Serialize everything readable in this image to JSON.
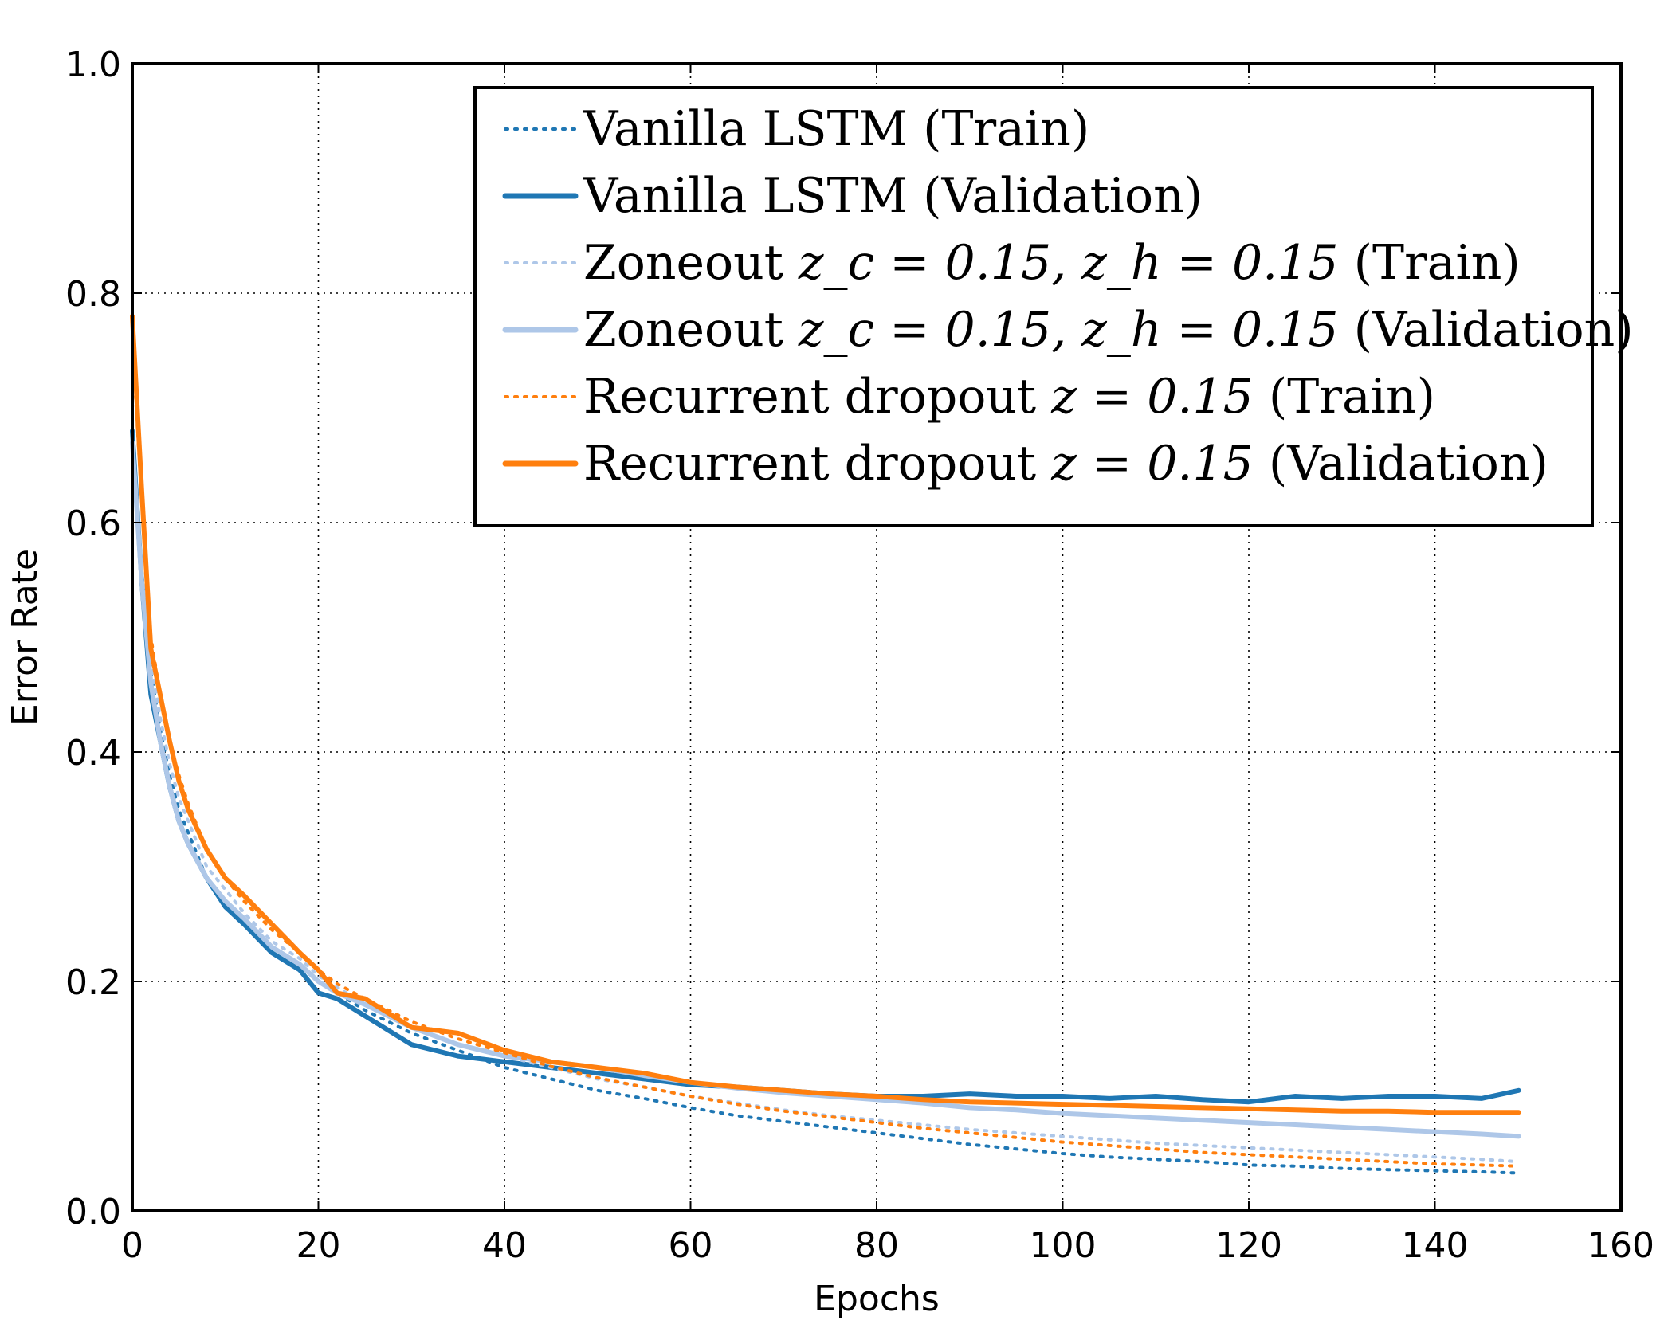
{
  "chart_data": {
    "type": "line",
    "title": "",
    "xlabel": "Epochs",
    "ylabel": "Error Rate",
    "xlim": [
      0,
      160
    ],
    "ylim": [
      0.0,
      1.0
    ],
    "x_ticks": [
      "0",
      "20",
      "40",
      "60",
      "80",
      "100",
      "120",
      "140",
      "160"
    ],
    "y_ticks": [
      "0.0",
      "0.2",
      "0.4",
      "0.6",
      "0.8",
      "1.0"
    ],
    "grid": true,
    "legend_position": "top-right",
    "x_samples": [
      0,
      1,
      2,
      3,
      4,
      5,
      6,
      8,
      10,
      12,
      15,
      18,
      20,
      22,
      25,
      30,
      35,
      40,
      45,
      50,
      55,
      60,
      65,
      70,
      75,
      80,
      85,
      90,
      95,
      100,
      105,
      110,
      115,
      120,
      125,
      130,
      135,
      140,
      145,
      149
    ],
    "series": [
      {
        "name": "Vanilla LSTM (Train)",
        "label_prefix": "Vanilla LSTM (Train)",
        "color": "#1f77b4",
        "style": "dotted",
        "values": [
          0.66,
          0.56,
          0.47,
          0.42,
          0.38,
          0.35,
          0.33,
          0.29,
          0.27,
          0.25,
          0.23,
          0.215,
          0.2,
          0.19,
          0.175,
          0.155,
          0.14,
          0.125,
          0.115,
          0.105,
          0.098,
          0.09,
          0.083,
          0.078,
          0.073,
          0.068,
          0.063,
          0.058,
          0.054,
          0.05,
          0.047,
          0.045,
          0.043,
          0.04,
          0.039,
          0.037,
          0.036,
          0.035,
          0.034,
          0.033
        ]
      },
      {
        "name": "Vanilla LSTM (Validation)",
        "label_prefix": "Vanilla LSTM (Validation)",
        "color": "#1f77b4",
        "style": "solid",
        "values": [
          0.68,
          0.55,
          0.45,
          0.41,
          0.37,
          0.34,
          0.32,
          0.29,
          0.265,
          0.25,
          0.225,
          0.21,
          0.19,
          0.185,
          0.17,
          0.145,
          0.135,
          0.13,
          0.125,
          0.12,
          0.115,
          0.11,
          0.108,
          0.105,
          0.102,
          0.1,
          0.1,
          0.102,
          0.1,
          0.1,
          0.098,
          0.1,
          0.097,
          0.095,
          0.1,
          0.098,
          0.1,
          0.1,
          0.098,
          0.105
        ]
      },
      {
        "name": "Zoneout (Train)",
        "label_prefix": "Zoneout ",
        "label_math": "z_c = 0.15, z_h = 0.15",
        "label_suffix": " (Train)",
        "color": "#aec7e8",
        "style": "dotted",
        "values": [
          0.67,
          0.56,
          0.48,
          0.43,
          0.39,
          0.36,
          0.34,
          0.3,
          0.28,
          0.26,
          0.235,
          0.22,
          0.205,
          0.195,
          0.18,
          0.16,
          0.145,
          0.135,
          0.125,
          0.115,
          0.108,
          0.1,
          0.094,
          0.088,
          0.083,
          0.079,
          0.075,
          0.071,
          0.068,
          0.065,
          0.062,
          0.059,
          0.057,
          0.055,
          0.053,
          0.051,
          0.049,
          0.047,
          0.045,
          0.043
        ]
      },
      {
        "name": "Zoneout (Validation)",
        "label_prefix": "Zoneout ",
        "label_math": "z_c = 0.15, z_h = 0.15",
        "label_suffix": " (Validation)",
        "color": "#aec7e8",
        "style": "solid",
        "values": [
          0.67,
          0.55,
          0.46,
          0.41,
          0.37,
          0.34,
          0.32,
          0.29,
          0.27,
          0.255,
          0.23,
          0.215,
          0.2,
          0.19,
          0.18,
          0.16,
          0.145,
          0.135,
          0.13,
          0.125,
          0.118,
          0.112,
          0.107,
          0.103,
          0.1,
          0.097,
          0.094,
          0.09,
          0.088,
          0.085,
          0.083,
          0.081,
          0.079,
          0.077,
          0.075,
          0.073,
          0.071,
          0.069,
          0.067,
          0.065
        ]
      },
      {
        "name": "Recurrent dropout (Train)",
        "label_prefix": "Recurrent dropout ",
        "label_math": "z = 0.15",
        "label_suffix": " (Train)",
        "color": "#ff7f0e",
        "style": "dotted",
        "values": [
          0.76,
          0.62,
          0.5,
          0.45,
          0.41,
          0.38,
          0.355,
          0.315,
          0.29,
          0.27,
          0.245,
          0.225,
          0.21,
          0.198,
          0.185,
          0.165,
          0.15,
          0.138,
          0.126,
          0.116,
          0.108,
          0.1,
          0.093,
          0.087,
          0.082,
          0.077,
          0.072,
          0.068,
          0.064,
          0.06,
          0.057,
          0.054,
          0.051,
          0.049,
          0.047,
          0.045,
          0.043,
          0.041,
          0.04,
          0.039
        ]
      },
      {
        "name": "Recurrent dropout (Validation)",
        "label_prefix": "Recurrent dropout ",
        "label_math": "z = 0.15",
        "label_suffix": " (Validation)",
        "color": "#ff7f0e",
        "style": "solid",
        "values": [
          0.78,
          0.63,
          0.49,
          0.45,
          0.41,
          0.375,
          0.35,
          0.315,
          0.29,
          0.275,
          0.25,
          0.225,
          0.21,
          0.19,
          0.185,
          0.16,
          0.155,
          0.14,
          0.13,
          0.125,
          0.12,
          0.112,
          0.108,
          0.105,
          0.102,
          0.1,
          0.097,
          0.095,
          0.094,
          0.093,
          0.092,
          0.091,
          0.09,
          0.089,
          0.088,
          0.087,
          0.087,
          0.086,
          0.086,
          0.086
        ]
      }
    ]
  }
}
